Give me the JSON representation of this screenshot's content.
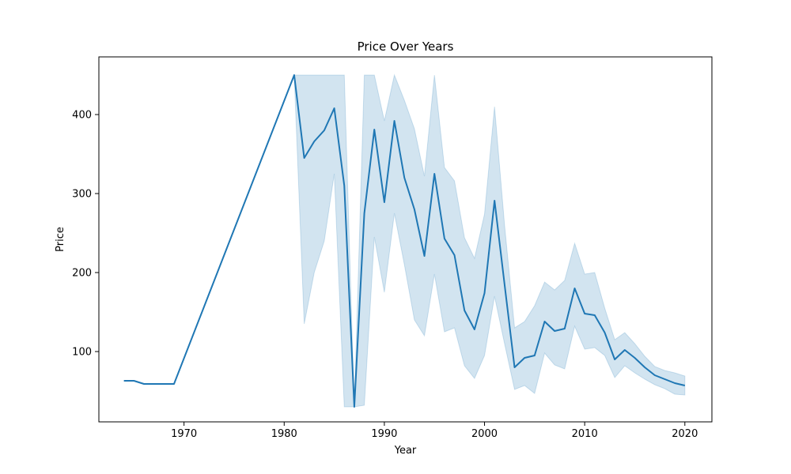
{
  "chart_data": {
    "type": "line",
    "title": "Price Over Years",
    "xlabel": "Year",
    "ylabel": "Price",
    "xlim": [
      1961.5,
      2022.7
    ],
    "ylim": [
      11,
      473
    ],
    "xticks": [
      1970,
      1980,
      1990,
      2000,
      2010,
      2020
    ],
    "yticks": [
      100,
      200,
      300,
      400
    ],
    "grid": false,
    "legend": "none",
    "colors": {
      "line": "#1f77b4",
      "band": "#1f77b4"
    },
    "series": [
      {
        "x": [
          1964,
          1965,
          1966,
          1967,
          1968,
          1969,
          1981,
          1982,
          1983,
          1984,
          1985,
          1986,
          1987,
          1988,
          1989,
          1990,
          1991,
          1992,
          1993,
          1994,
          1995,
          1996,
          1997,
          1998,
          1999,
          2000,
          2001,
          2002,
          2003,
          2004,
          2005,
          2006,
          2007,
          2008,
          2009,
          2010,
          2011,
          2012,
          2013,
          2014,
          2015,
          2016,
          2017,
          2018,
          2019,
          2020
        ],
        "y": [
          63,
          63,
          59,
          59,
          59,
          59,
          450,
          345,
          366,
          380,
          408,
          310,
          30,
          275,
          381,
          289,
          392,
          320,
          280,
          221,
          325,
          243,
          222,
          152,
          128,
          174,
          291,
          185,
          80,
          92,
          95,
          138,
          126,
          129,
          180,
          148,
          146,
          124,
          90,
          102,
          92,
          80,
          70,
          65,
          60,
          57
        ],
        "lower": [
          63,
          63,
          59,
          59,
          59,
          59,
          450,
          135,
          200,
          240,
          325,
          30,
          30,
          32,
          245,
          175,
          275,
          210,
          140,
          120,
          198,
          125,
          130,
          82,
          66,
          95,
          170,
          110,
          52,
          57,
          47,
          98,
          83,
          78,
          132,
          103,
          105,
          95,
          67,
          82,
          73,
          65,
          58,
          53,
          46,
          45
        ],
        "upper": [
          63,
          63,
          59,
          59,
          59,
          59,
          450,
          450,
          450,
          450,
          450,
          450,
          30,
          450,
          450,
          392,
          450,
          418,
          382,
          322,
          450,
          333,
          316,
          244,
          218,
          274,
          410,
          260,
          130,
          138,
          158,
          188,
          178,
          190,
          237,
          198,
          200,
          155,
          115,
          124,
          110,
          94,
          81,
          76,
          73,
          69
        ]
      }
    ]
  }
}
